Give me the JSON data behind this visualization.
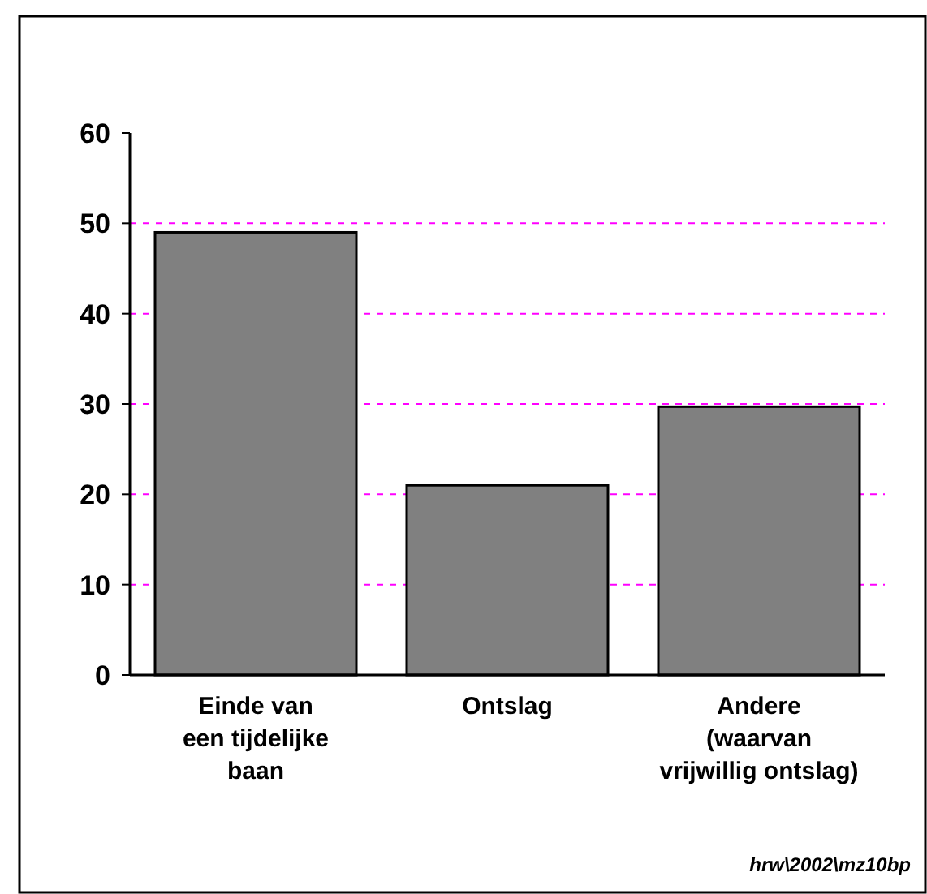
{
  "chart_data": {
    "type": "bar",
    "categories": [
      "Einde van\neen tijdelijke\nbaan",
      "Ontslag",
      "Andere\n(waarvan\nvrijwillig ontslag)"
    ],
    "values": [
      49,
      21,
      29.7
    ],
    "color": "#808080",
    "ylim": [
      0,
      60
    ],
    "yticks": [
      0,
      10,
      20,
      30,
      40,
      50,
      60
    ],
    "grid": "y",
    "annotations": [
      "hrw\\2002\\mz10bp"
    ]
  }
}
